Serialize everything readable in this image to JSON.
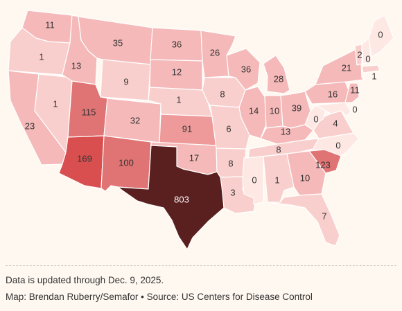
{
  "notes": {
    "update": "Data is updated through Dec. 9, 2025.",
    "credit": "Map: Brendan Ruberry/Semafor • Source: US Centers for Disease Control"
  },
  "colors": {
    "background": "#fff8f0",
    "border": "#ffffff",
    "scale": [
      "#fde8e4",
      "#f8cfcc",
      "#f5b9b9",
      "#ee9a9a",
      "#e07373",
      "#d94f4f",
      "#5a1f1f"
    ]
  },
  "states": [
    {
      "abbr": "WA",
      "value": 11
    },
    {
      "abbr": "OR",
      "value": 1
    },
    {
      "abbr": "CA",
      "value": 23
    },
    {
      "abbr": "NV",
      "value": 1
    },
    {
      "abbr": "ID",
      "value": 13
    },
    {
      "abbr": "MT",
      "value": 35
    },
    {
      "abbr": "WY",
      "value": 9
    },
    {
      "abbr": "UT",
      "value": 115
    },
    {
      "abbr": "AZ",
      "value": 169
    },
    {
      "abbr": "CO",
      "value": 32
    },
    {
      "abbr": "NM",
      "value": 100
    },
    {
      "abbr": "ND",
      "value": 36
    },
    {
      "abbr": "SD",
      "value": 12
    },
    {
      "abbr": "NE",
      "value": 1
    },
    {
      "abbr": "KS",
      "value": 91
    },
    {
      "abbr": "OK",
      "value": 17
    },
    {
      "abbr": "TX",
      "value": 803
    },
    {
      "abbr": "MN",
      "value": 26
    },
    {
      "abbr": "IA",
      "value": 8
    },
    {
      "abbr": "MO",
      "value": 6
    },
    {
      "abbr": "AR",
      "value": 8
    },
    {
      "abbr": "LA",
      "value": 3
    },
    {
      "abbr": "WI",
      "value": 36
    },
    {
      "abbr": "IL",
      "value": 14
    },
    {
      "abbr": "MI",
      "value": 28
    },
    {
      "abbr": "IN",
      "value": 10
    },
    {
      "abbr": "OH",
      "value": 39
    },
    {
      "abbr": "KY",
      "value": 13
    },
    {
      "abbr": "TN",
      "value": 8
    },
    {
      "abbr": "MS",
      "value": 0
    },
    {
      "abbr": "AL",
      "value": 1
    },
    {
      "abbr": "GA",
      "value": 10
    },
    {
      "abbr": "FL",
      "value": 7
    },
    {
      "abbr": "SC",
      "value": 123
    },
    {
      "abbr": "NC",
      "value": 0
    },
    {
      "abbr": "VA",
      "value": 4
    },
    {
      "abbr": "WV",
      "value": 0
    },
    {
      "abbr": "PA",
      "value": 16
    },
    {
      "abbr": "NY",
      "value": 21
    },
    {
      "abbr": "NJ",
      "value": 11
    },
    {
      "abbr": "MD",
      "value": 0
    },
    {
      "abbr": "VT",
      "value": 2
    },
    {
      "abbr": "NH",
      "value": 0
    },
    {
      "abbr": "ME",
      "value": 0
    },
    {
      "abbr": "MA",
      "value": 1
    }
  ]
}
